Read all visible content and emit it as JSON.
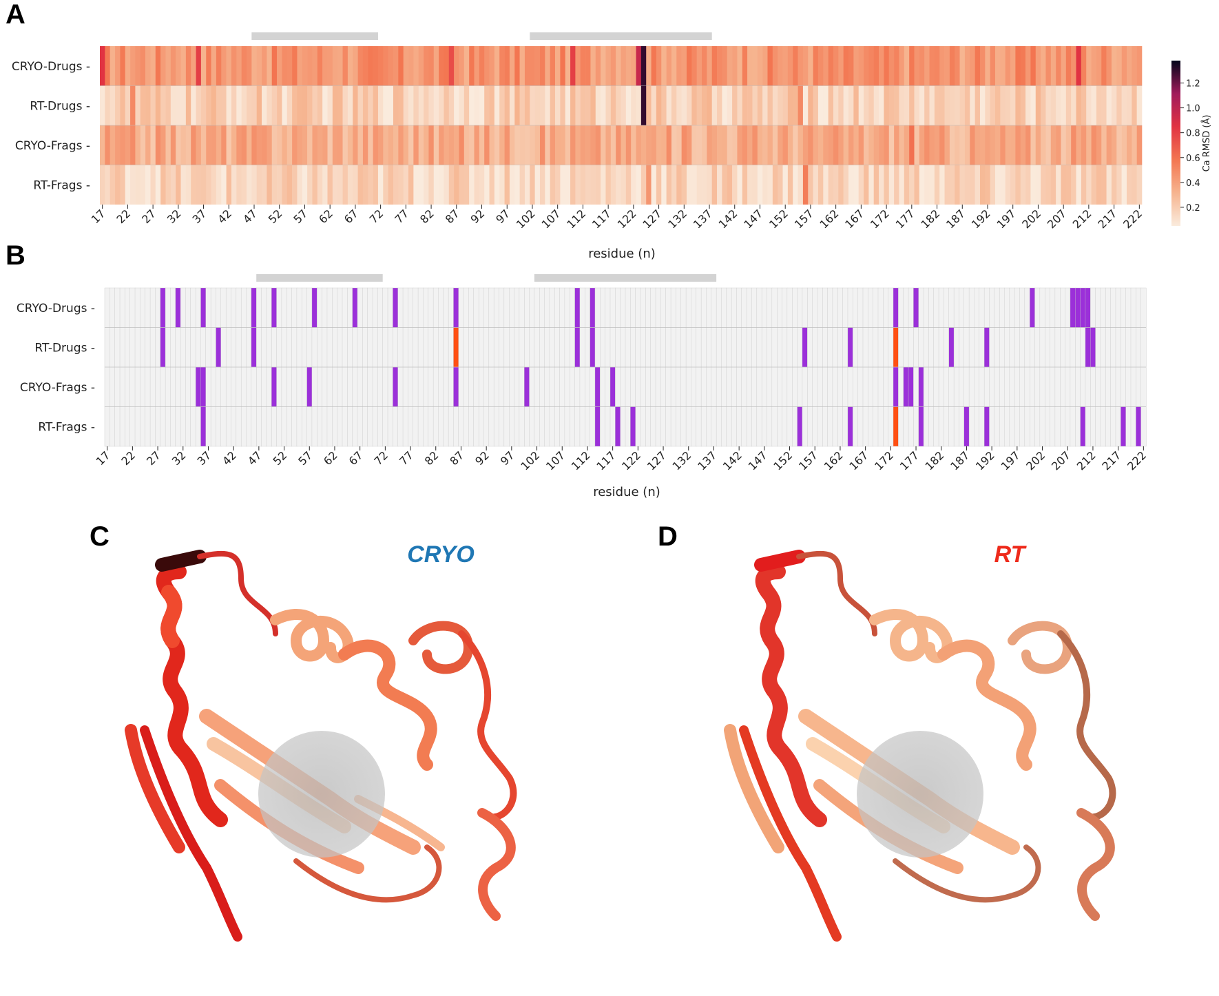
{
  "panels": {
    "A": "A",
    "B": "B",
    "C": "C",
    "D": "D"
  },
  "structures": {
    "cryo_title": "CRYO",
    "rt_title": "RT",
    "cryo_color": "#1f77b4",
    "rt_color": "#ee2a1b"
  },
  "chart_data": [
    {
      "type": "heatmap",
      "panel": "A",
      "rows": [
        "CRYO-Drugs",
        "RT-Drugs",
        "CRYO-Frags",
        "RT-Frags"
      ],
      "x_range": [
        17,
        222
      ],
      "x_ticks": [
        17,
        22,
        27,
        32,
        37,
        42,
        47,
        52,
        57,
        62,
        67,
        72,
        77,
        82,
        87,
        92,
        97,
        102,
        107,
        112,
        117,
        122,
        127,
        132,
        137,
        142,
        147,
        152,
        157,
        162,
        167,
        172,
        177,
        182,
        187,
        192,
        197,
        202,
        207,
        212,
        217,
        222
      ],
      "xlabel": "residue (n)",
      "colorbar": {
        "label": "Ca RMSD (Å)",
        "ticks": [
          0.2,
          0.4,
          0.6,
          0.8,
          1.0,
          1.2
        ],
        "range": [
          0.05,
          1.38
        ],
        "colormap": "rocket_r"
      },
      "highlight_ranges": [
        [
          47,
          71
        ],
        [
          102,
          137
        ]
      ],
      "notable_values": [
        {
          "row": "CRYO-Drugs",
          "residue": 124,
          "value": 1.3
        },
        {
          "row": "RT-Drugs",
          "residue": 124,
          "value": 1.3
        },
        {
          "row": "CRYO-Drugs",
          "residue": 123,
          "value": 0.95
        },
        {
          "row": "CRYO-Drugs",
          "residue": 17,
          "value": 0.85
        },
        {
          "row": "CRYO-Drugs",
          "residue": 36,
          "value": 0.8
        },
        {
          "row": "CRYO-Drugs",
          "residue": 86,
          "value": 0.75
        },
        {
          "row": "CRYO-Drugs",
          "residue": 110,
          "value": 0.8
        },
        {
          "row": "CRYO-Drugs",
          "residue": 210,
          "value": 0.85
        },
        {
          "row": "RT-Drugs",
          "residue": 23,
          "value": 0.5
        },
        {
          "row": "RT-Drugs",
          "residue": 155,
          "value": 0.5
        },
        {
          "row": "CRYO-Frags",
          "residue": 177,
          "value": 0.6
        },
        {
          "row": "RT-Frags",
          "residue": 156,
          "value": 0.55
        },
        {
          "row": "RT-Frags",
          "residue": 125,
          "value": 0.45
        }
      ]
    },
    {
      "type": "heatmap",
      "panel": "B",
      "rows": [
        "CRYO-Drugs",
        "RT-Drugs",
        "CRYO-Frags",
        "RT-Frags"
      ],
      "x_range": [
        17,
        222
      ],
      "x_ticks": [
        17,
        22,
        27,
        32,
        37,
        42,
        47,
        52,
        57,
        62,
        67,
        72,
        77,
        82,
        87,
        92,
        97,
        102,
        107,
        112,
        117,
        122,
        127,
        132,
        137,
        142,
        147,
        152,
        157,
        162,
        167,
        172,
        177,
        182,
        187,
        192,
        197,
        202,
        207,
        212,
        217,
        222
      ],
      "xlabel": "residue (n)",
      "highlight_ranges": [
        [
          47,
          71
        ],
        [
          102,
          137
        ]
      ],
      "colors": {
        "background": "#f2f2f2",
        "purple": "#9b30d9",
        "orange": "#ff4f12"
      },
      "purple_marks": {
        "CRYO-Drugs": [
          28,
          31,
          36,
          46,
          50,
          58,
          66,
          74,
          86,
          110,
          113,
          173,
          177,
          200,
          208,
          209,
          210,
          211
        ],
        "RT-Drugs": [
          28,
          39,
          46,
          110,
          113,
          155,
          164,
          184,
          191,
          211,
          212
        ],
        "CRYO-Frags": [
          35,
          36,
          50,
          57,
          74,
          86,
          100,
          114,
          117,
          173,
          175,
          176,
          178
        ],
        "RT-Frags": [
          36,
          114,
          118,
          121,
          154,
          164,
          178,
          187,
          191,
          210,
          218,
          221
        ]
      },
      "orange_marks": {
        "RT-Drugs": [
          86,
          173
        ],
        "RT-Frags": [
          173
        ]
      }
    }
  ]
}
